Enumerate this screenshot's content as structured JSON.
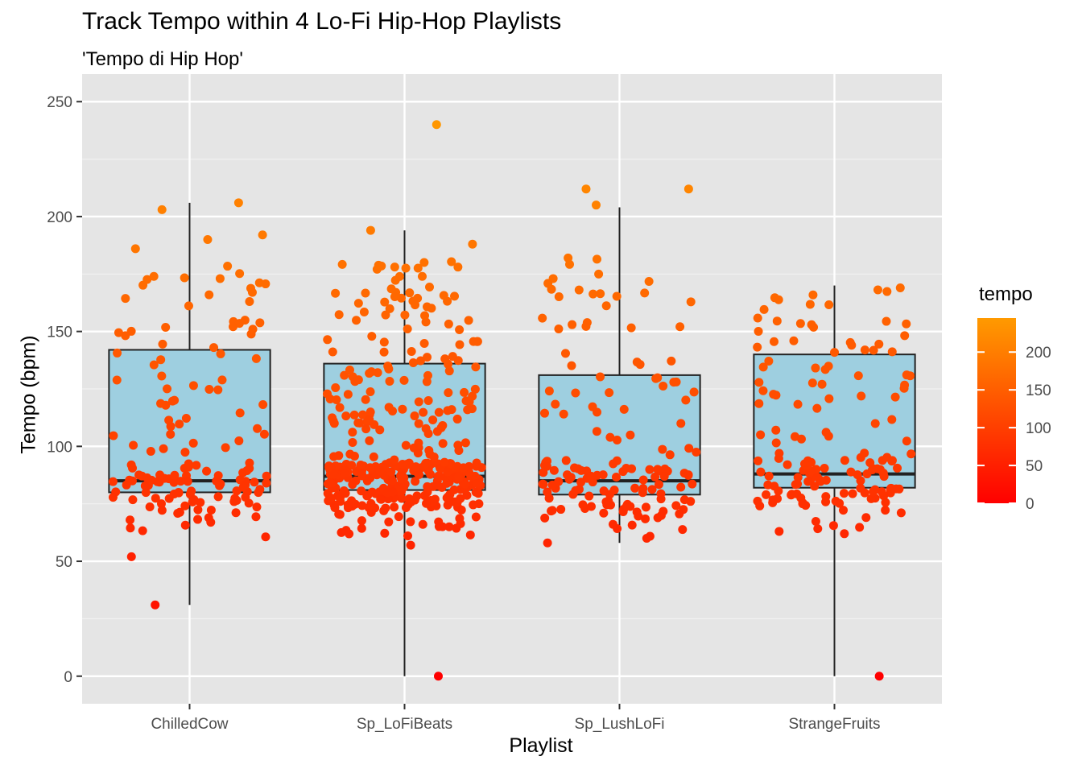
{
  "chart_data": {
    "type": "boxplot",
    "title": "Track Tempo within 4 Lo-Fi Hip-Hop Playlists",
    "subtitle": "'Tempo di Hip Hop'",
    "xlabel": "Playlist",
    "ylabel": "Tempo (bpm)",
    "ylim": [
      -12,
      262
    ],
    "yticks": [
      0,
      50,
      100,
      150,
      200,
      250
    ],
    "categories": [
      "ChilledCow",
      "Sp_LoFiBeats",
      "Sp_LushLoFi",
      "StrangeFruits"
    ],
    "box_fill": "#9ecfe0",
    "panel_bg": "#e5e5e5",
    "boxes": [
      {
        "category": "ChilledCow",
        "lower_whisker": 31,
        "q1": 80,
        "median": 85,
        "q3": 142,
        "upper_whisker": 206
      },
      {
        "category": "Sp_LoFiBeats",
        "lower_whisker": 0,
        "q1": 81,
        "median": 87,
        "q3": 136,
        "upper_whisker": 194
      },
      {
        "category": "Sp_LushLoFi",
        "lower_whisker": 58,
        "q1": 79,
        "median": 85,
        "q3": 131,
        "upper_whisker": 204
      },
      {
        "category": "StrangeFruits",
        "lower_whisker": 0,
        "q1": 82,
        "median": 88,
        "q3": 140,
        "upper_whisker": 170
      }
    ],
    "notable_points": [
      {
        "category": "ChilledCow",
        "tempo": 31
      },
      {
        "category": "ChilledCow",
        "tempo": 52
      },
      {
        "category": "ChilledCow",
        "tempo": 206
      },
      {
        "category": "ChilledCow",
        "tempo": 203
      },
      {
        "category": "ChilledCow",
        "tempo": 192
      },
      {
        "category": "ChilledCow",
        "tempo": 190
      },
      {
        "category": "ChilledCow",
        "tempo": 186
      },
      {
        "category": "Sp_LoFiBeats",
        "tempo": 0
      },
      {
        "category": "Sp_LoFiBeats",
        "tempo": 240
      },
      {
        "category": "Sp_LoFiBeats",
        "tempo": 194
      },
      {
        "category": "Sp_LoFiBeats",
        "tempo": 188
      },
      {
        "category": "Sp_LoFiBeats",
        "tempo": 57
      },
      {
        "category": "Sp_LushLoFi",
        "tempo": 212
      },
      {
        "category": "Sp_LushLoFi",
        "tempo": 212
      },
      {
        "category": "Sp_LushLoFi",
        "tempo": 205
      },
      {
        "category": "Sp_LushLoFi",
        "tempo": 58
      },
      {
        "category": "Sp_LushLoFi",
        "tempo": 60
      },
      {
        "category": "StrangeFruits",
        "tempo": 0
      },
      {
        "category": "StrangeFruits",
        "tempo": 62
      },
      {
        "category": "StrangeFruits",
        "tempo": 63
      }
    ],
    "legend": {
      "title": "tempo",
      "placement": "right",
      "ticks": [
        0,
        50,
        100,
        150,
        200
      ],
      "range": [
        0,
        245
      ],
      "color_low": "#ff0000",
      "color_high": "#ff9a00"
    }
  }
}
